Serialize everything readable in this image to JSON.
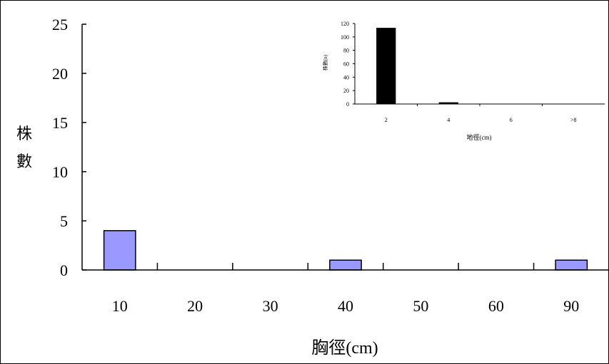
{
  "colors": {
    "main_bar_fill": "#9999ff",
    "main_bar_stroke": "#000000",
    "inset_bar_fill": "#000000",
    "axis": "#000000",
    "background": "#ffffff"
  },
  "chart_data": [
    {
      "type": "bar",
      "title": "",
      "xlabel": "胸徑(cm)",
      "ylabel": "株數",
      "categories": [
        "10",
        "20",
        "30",
        "40",
        "50",
        "60",
        "90"
      ],
      "values": [
        4,
        0,
        0,
        1,
        0,
        0,
        1
      ],
      "ylim": [
        0,
        25
      ],
      "yticks": [
        "0",
        "5",
        "10",
        "15",
        "20",
        "25"
      ],
      "grid": false
    },
    {
      "type": "bar",
      "title": "",
      "xlabel": "地徑(cm)",
      "ylabel": "株數(n)",
      "categories": [
        "2",
        "4",
        "6",
        ">8"
      ],
      "values": [
        113,
        2,
        0,
        0
      ],
      "ylim": [
        0,
        120
      ],
      "yticks": [
        "0",
        "20",
        "40",
        "60",
        "80",
        "100",
        "120"
      ],
      "grid": false
    }
  ]
}
